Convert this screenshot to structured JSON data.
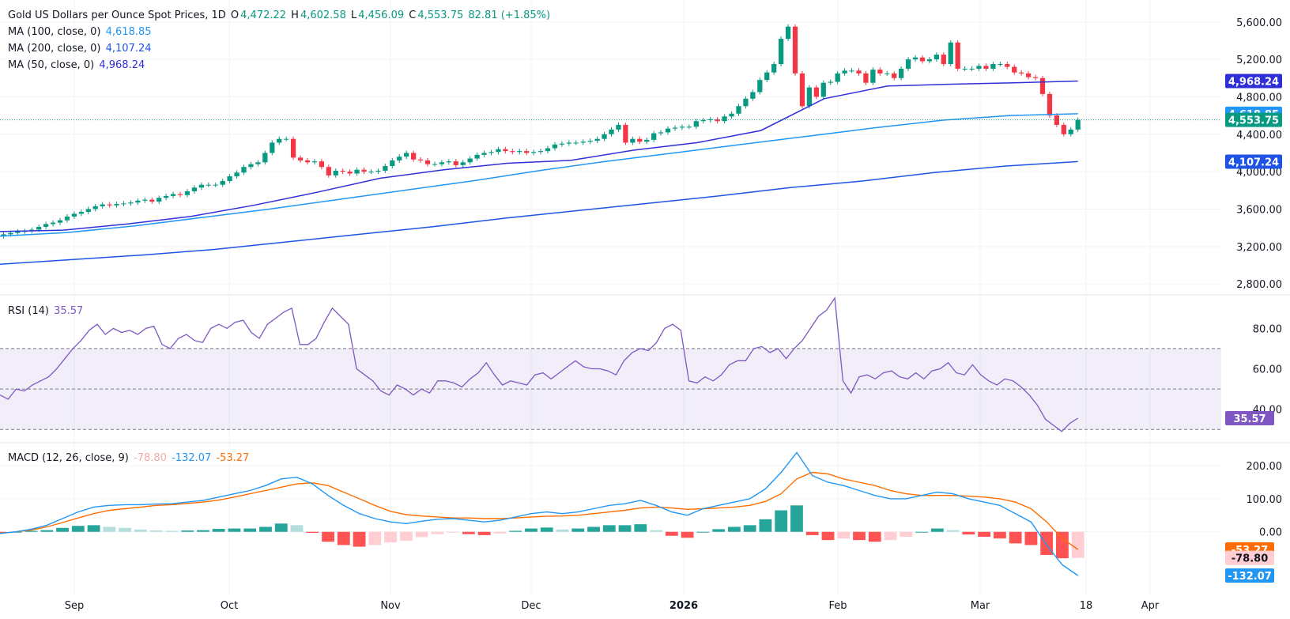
{
  "header": {
    "title": "Gold US Dollars per Ounce Spot Prices, 1D",
    "o_label": "O",
    "o": "4,472.22",
    "h_label": "H",
    "h": "4,602.58",
    "l_label": "L",
    "l": "4,456.09",
    "c_label": "C",
    "c": "4,553.75",
    "change": "82.81 (+1.85%)"
  },
  "ma100": {
    "label": "MA (100, close, 0)",
    "value": "4,618.85",
    "color": "#2196f3"
  },
  "ma200": {
    "label": "MA (200, close, 0)",
    "value": "4,107.24",
    "color": "#1e53e5"
  },
  "ma50": {
    "label": "MA (50, close, 0)",
    "value": "4,968.24",
    "color": "#2f2fd8"
  },
  "rsi": {
    "label": "RSI (14)",
    "value": "35.57",
    "color": "#7e57c2"
  },
  "macd": {
    "label": "MACD (12, 26, close, 9)",
    "hist": "-78.80",
    "macd_val": "-132.07",
    "signal": "-53.27"
  },
  "colors": {
    "up": "#089981",
    "down": "#f23645",
    "grid": "#f0f3fa",
    "text": "#131722"
  },
  "chart_data": [
    {
      "type": "candlestick",
      "title": "Gold US Dollars per Ounce Spot Prices, 1D",
      "ylim": [
        2700,
        5750
      ],
      "y_ticks": [
        "2,800.00",
        "3,200.00",
        "3,600.00",
        "4,000.00",
        "4,400.00",
        "4,800.00",
        "5,200.00",
        "5,600.00"
      ],
      "x_ticks": [
        "Sep",
        "Oct",
        "Nov",
        "Dec",
        "2026",
        "Feb",
        "Mar",
        "18",
        "Apr"
      ],
      "closes": [
        3330,
        3345,
        3360,
        3365,
        3380,
        3410,
        3440,
        3455,
        3480,
        3520,
        3550,
        3570,
        3600,
        3630,
        3650,
        3640,
        3655,
        3660,
        3670,
        3690,
        3700,
        3680,
        3720,
        3740,
        3760,
        3750,
        3790,
        3830,
        3860,
        3860,
        3860,
        3900,
        3950,
        3990,
        4050,
        4080,
        4100,
        4200,
        4310,
        4350,
        4350,
        4150,
        4120,
        4100,
        4110,
        4050,
        3960,
        4010,
        4000,
        3980,
        4020,
        4000,
        4000,
        4010,
        4060,
        4120,
        4160,
        4200,
        4130,
        4120,
        4080,
        4080,
        4100,
        4110,
        4070,
        4100,
        4140,
        4180,
        4200,
        4210,
        4240,
        4220,
        4210,
        4220,
        4200,
        4210,
        4220,
        4250,
        4290,
        4300,
        4310,
        4310,
        4320,
        4330,
        4350,
        4400,
        4450,
        4500,
        4310,
        4350,
        4320,
        4340,
        4410,
        4420,
        4460,
        4470,
        4480,
        4480,
        4540,
        4550,
        4560,
        4540,
        4590,
        4620,
        4700,
        4780,
        4850,
        4980,
        5060,
        5150,
        5420,
        5550,
        5050,
        4700,
        4900,
        4800,
        4950,
        4960,
        5050,
        5080,
        5080,
        5050,
        4950,
        5090,
        5050,
        5050,
        5000,
        5100,
        5200,
        5220,
        5180,
        5200,
        5250,
        5150,
        5380,
        5100,
        5100,
        5100,
        5130,
        5100,
        5150,
        5150,
        5120,
        5060,
        5050,
        5010,
        5000,
        4830,
        4600,
        4500,
        4400,
        4450,
        4553.75
      ],
      "ma50_points": [
        3360,
        3375,
        3440,
        3520,
        3640,
        3780,
        3930,
        4020,
        4090,
        4120,
        4230,
        4310,
        4440,
        4780,
        4915,
        4935,
        4950,
        4968.24
      ],
      "ma100_points": [
        3310,
        3350,
        3420,
        3510,
        3600,
        3700,
        3800,
        3900,
        4010,
        4110,
        4200,
        4290,
        4380,
        4470,
        4550,
        4600,
        4618.85
      ],
      "ma200_points": [
        3010,
        3060,
        3110,
        3170,
        3250,
        3330,
        3410,
        3500,
        3580,
        3660,
        3740,
        3830,
        3900,
        3990,
        4060,
        4107.24
      ]
    },
    {
      "type": "line",
      "title": "RSI (14)",
      "ylim": [
        25,
        95
      ],
      "y_ticks": [
        "40.00",
        "60.00",
        "80.00"
      ],
      "bands": [
        30,
        50,
        70
      ],
      "values": [
        47,
        45,
        50,
        49,
        52,
        54,
        56,
        60,
        65,
        70,
        74,
        79,
        82,
        77,
        80,
        78,
        79,
        77,
        80,
        81,
        72,
        70,
        75,
        77,
        74,
        73,
        80,
        82,
        80,
        83,
        84,
        78,
        75,
        82,
        85,
        88,
        90,
        72,
        72,
        75,
        83,
        90,
        86,
        82,
        60,
        57,
        54,
        49,
        47,
        52,
        50,
        47,
        50,
        48,
        54,
        54,
        53,
        51,
        55,
        58,
        63,
        57,
        52,
        54,
        53,
        52,
        57,
        58,
        55,
        58,
        61,
        64,
        61,
        60,
        60,
        59,
        57,
        64,
        68,
        70,
        69,
        73,
        80,
        82,
        79,
        54,
        53,
        56,
        54,
        57,
        62,
        64,
        64,
        70,
        71,
        68,
        70,
        65,
        70,
        74,
        80,
        86,
        89,
        95,
        54,
        48,
        56,
        57,
        55,
        58,
        59,
        56,
        55,
        58,
        55,
        59,
        60,
        63,
        58,
        57,
        62,
        57,
        54,
        52,
        55,
        54,
        51,
        47,
        42,
        35,
        32,
        29,
        33,
        35.57
      ]
    },
    {
      "type": "macd",
      "title": "MACD (12, 26, close, 9)",
      "ylim": [
        -180,
        260
      ],
      "y_ticks": [
        "0.00",
        "100.00",
        "200.00"
      ],
      "macd": [
        -5,
        0,
        8,
        20,
        40,
        60,
        75,
        80,
        82,
        82,
        84,
        85,
        90,
        95,
        105,
        115,
        125,
        140,
        160,
        165,
        145,
        110,
        80,
        55,
        40,
        30,
        25,
        32,
        38,
        40,
        35,
        30,
        35,
        45,
        55,
        60,
        55,
        60,
        70,
        80,
        85,
        95,
        80,
        60,
        50,
        70,
        80,
        90,
        100,
        130,
        180,
        240,
        170,
        150,
        140,
        125,
        110,
        100,
        100,
        110,
        120,
        115,
        100,
        90,
        80,
        55,
        30,
        -40,
        -100,
        -132.07
      ],
      "signal": [
        -5,
        0,
        5,
        15,
        28,
        42,
        55,
        65,
        70,
        75,
        80,
        82,
        86,
        90,
        96,
        105,
        115,
        125,
        135,
        145,
        148,
        140,
        120,
        100,
        80,
        62,
        52,
        48,
        45,
        42,
        42,
        40,
        40,
        42,
        45,
        47,
        48,
        50,
        55,
        60,
        65,
        72,
        75,
        72,
        68,
        70,
        72,
        75,
        80,
        92,
        115,
        160,
        180,
        175,
        160,
        150,
        140,
        125,
        115,
        110,
        110,
        110,
        108,
        105,
        100,
        90,
        70,
        30,
        -20,
        -53.27
      ],
      "hist": [
        -3,
        0,
        3,
        5,
        12,
        18,
        20,
        15,
        12,
        7,
        4,
        3,
        4,
        5,
        9,
        10,
        10,
        15,
        25,
        20,
        -3,
        -30,
        -40,
        -45,
        -40,
        -32,
        -27,
        -16,
        -7,
        -2,
        -7,
        -10,
        -5,
        3,
        10,
        13,
        7,
        10,
        15,
        20,
        20,
        23,
        5,
        -12,
        -18,
        0,
        8,
        15,
        20,
        38,
        65,
        80,
        -10,
        -25,
        -20,
        -25,
        -30,
        -25,
        -15,
        0,
        10,
        5,
        -8,
        -15,
        -20,
        -35,
        -40,
        -70,
        -80,
        -78.8
      ]
    }
  ]
}
